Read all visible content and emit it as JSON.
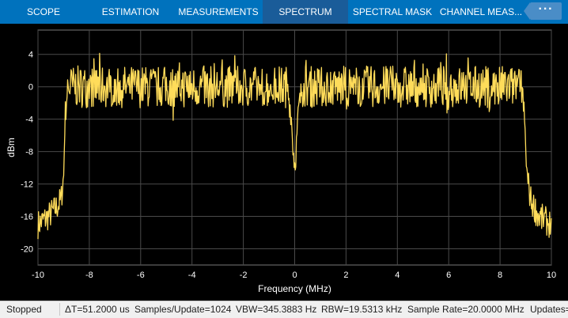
{
  "ribbon": {
    "tabs": [
      {
        "label": "SCOPE"
      },
      {
        "label": "ESTIMATION"
      },
      {
        "label": "MEASUREMENTS"
      },
      {
        "label": "SPECTRUM"
      },
      {
        "label": "SPECTRAL MASK"
      },
      {
        "label": "CHANNEL MEAS..."
      }
    ],
    "active_tab": "SPECTRUM",
    "more_label": "···"
  },
  "colors": {
    "ribbon": "#0072bd",
    "active_tab": "#1a5c99",
    "plot_background": "#000000",
    "figure_background": "#1b1b1b",
    "trace": "#ffdc5a",
    "grid": "#4a4a4a"
  },
  "chart_data": {
    "type": "line",
    "xlabel": "Frequency (MHz)",
    "ylabel": "dBm",
    "xlim": [
      -10,
      10
    ],
    "ylim": [
      -22,
      7
    ],
    "xticks": [
      -10,
      -8,
      -6,
      -4,
      -2,
      0,
      2,
      4,
      6,
      8,
      10
    ],
    "yticks": [
      4,
      0,
      -4,
      -8,
      -12,
      -16,
      -20
    ],
    "grid": true,
    "series": [
      {
        "x": [
          -10,
          -9.6,
          -9.3,
          -9.1,
          -9.0,
          -8.95,
          -8.85,
          -8.6,
          -8.0,
          -7.0,
          -6.0,
          -5.0,
          -4.0,
          -3.0,
          -2.0,
          -1.0,
          -0.3,
          -0.15,
          -0.05,
          0.0,
          0.05,
          0.15,
          0.3,
          1.0,
          2.0,
          3.0,
          4.0,
          5.0,
          6.0,
          7.0,
          8.0,
          8.6,
          8.85,
          8.95,
          9.05,
          9.2,
          9.5,
          10
        ],
        "y": [
          -17,
          -16,
          -15,
          -14,
          -11,
          -4,
          0,
          0,
          0,
          0,
          0,
          0,
          0,
          0,
          0,
          0,
          0,
          -3,
          -8,
          -9.5,
          -8,
          -3,
          0,
          0,
          0,
          0,
          0,
          0,
          0,
          0,
          0,
          0,
          0,
          -4,
          -11,
          -14,
          -16,
          -17
        ]
      }
    ]
  },
  "status": {
    "state": "Stopped",
    "delta_t": "ΔT=51.2000 us",
    "samples": "Samples/Update=1024",
    "vbw": "VBW=345.3883 Hz",
    "rbw": "RBW=19.5313 kHz",
    "sample_rate": "Sample Rate=20.0000 MHz",
    "updates": "Updates="
  }
}
